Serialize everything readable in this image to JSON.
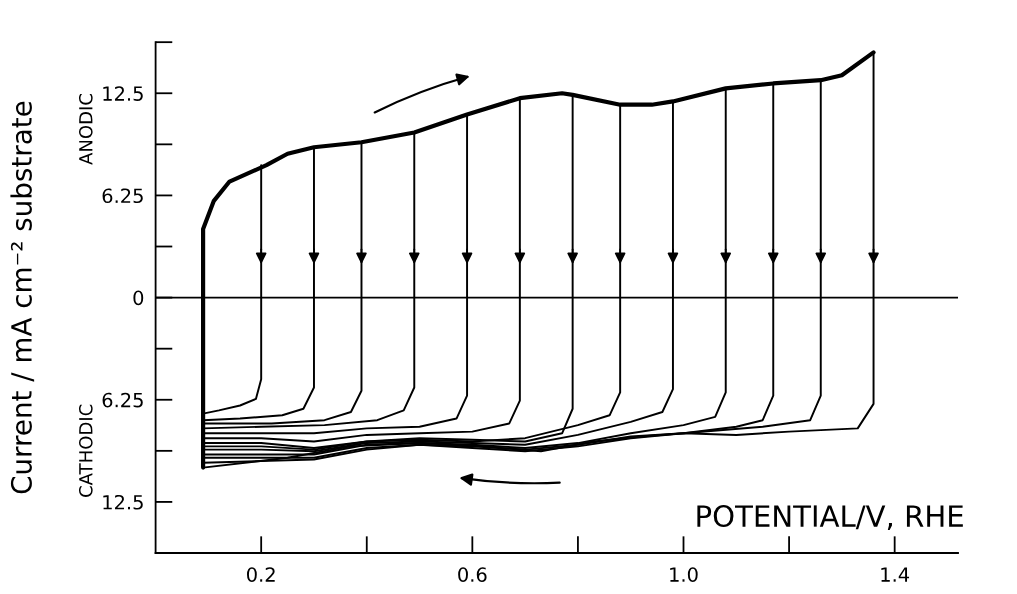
{
  "chart_data": {
    "type": "line",
    "xlabel": "POTENTIAL/V, RHE",
    "ylabel": "Current / mA cm⁻² substrate",
    "annotations": [
      "ANODIC",
      "CATHODIC"
    ],
    "xlim": [
      0,
      1.52
    ],
    "xticks": [
      0.2,
      0.6,
      {
        "value": 1.0,
        "label": "1.0"
      },
      1.4
    ],
    "ylim": [
      -15.625,
      15.625
    ],
    "yticks": [
      {
        "value": -12.5,
        "label": "12.5"
      },
      {
        "value": -6.25,
        "label": "6.25"
      },
      0,
      6.25,
      12.5
    ],
    "ref_lines": [
      {
        "axis": "y",
        "value": 0,
        "color": "#000000"
      }
    ],
    "grid": false,
    "legend": false,
    "marker": "none",
    "line_style": "solid",
    "series": [
      {
        "color": "#000000",
        "x": [
          0.09,
          0.09,
          0.09,
          0.11,
          0.14,
          0.21,
          0.25,
          0.3,
          0.39,
          0.49,
          0.59,
          0.69,
          0.77,
          0.79,
          0.88,
          0.94,
          0.98,
          1.08,
          1.17,
          1.26,
          1.3,
          1.36
        ],
        "values": [
          -10.4,
          2.0,
          4.2,
          5.9,
          7.1,
          8.1,
          8.8,
          9.2,
          9.5,
          10.1,
          11.2,
          12.2,
          12.5,
          12.4,
          11.8,
          11.8,
          12.0,
          12.8,
          13.1,
          13.3,
          13.6,
          15.0
        ]
      },
      {
        "color": "#000000",
        "x": [
          0.2,
          0.2,
          0.19,
          0.16,
          0.12,
          0.09
        ],
        "values": [
          8.1,
          -5.0,
          -6.2,
          -6.6,
          -6.9,
          -7.1
        ]
      },
      {
        "color": "#000000",
        "x": [
          0.3,
          0.3,
          0.28,
          0.24,
          0.16,
          0.09
        ],
        "values": [
          9.2,
          -5.5,
          -6.8,
          -7.2,
          -7.4,
          -7.5
        ]
      },
      {
        "color": "#000000",
        "x": [
          0.39,
          0.39,
          0.37,
          0.32,
          0.22,
          0.09
        ],
        "values": [
          9.5,
          -5.7,
          -7.0,
          -7.5,
          -7.7,
          -7.7
        ]
      },
      {
        "color": "#000000",
        "x": [
          0.49,
          0.49,
          0.47,
          0.42,
          0.32,
          0.2,
          0.09
        ],
        "values": [
          10.1,
          -5.5,
          -6.9,
          -7.5,
          -7.8,
          -7.9,
          -8.0
        ]
      },
      {
        "color": "#000000",
        "x": [
          0.59,
          0.59,
          0.57,
          0.5,
          0.4,
          0.3,
          0.2,
          0.09
        ],
        "values": [
          11.2,
          -6.0,
          -7.4,
          -7.9,
          -8.0,
          -8.3,
          -8.3,
          -8.3
        ]
      },
      {
        "color": "#000000",
        "x": [
          0.69,
          0.69,
          0.67,
          0.6,
          0.5,
          0.4,
          0.3,
          0.2,
          0.09
        ],
        "values": [
          12.2,
          -6.3,
          -7.7,
          -8.2,
          -8.3,
          -8.4,
          -8.8,
          -8.6,
          -8.6
        ]
      },
      {
        "color": "#000000",
        "x": [
          0.79,
          0.79,
          0.77,
          0.7,
          0.6,
          0.5,
          0.4,
          0.3,
          0.2,
          0.09
        ],
        "values": [
          12.4,
          -6.8,
          -8.3,
          -8.8,
          -8.7,
          -8.6,
          -8.8,
          -9.2,
          -8.9,
          -8.9
        ]
      },
      {
        "color": "#000000",
        "x": [
          0.88,
          0.88,
          0.86,
          0.8,
          0.7,
          0.6,
          0.5,
          0.4,
          0.3,
          0.2,
          0.09
        ],
        "values": [
          11.8,
          -5.8,
          -7.2,
          -7.8,
          -8.6,
          -8.8,
          -8.7,
          -8.8,
          -9.3,
          -9.1,
          -9.1
        ]
      },
      {
        "color": "#000000",
        "x": [
          0.98,
          0.98,
          0.96,
          0.9,
          0.8,
          0.7,
          0.6,
          0.5,
          0.4,
          0.3,
          0.2,
          0.09
        ],
        "values": [
          12.0,
          -5.6,
          -7.0,
          -7.6,
          -8.4,
          -9.0,
          -8.9,
          -8.8,
          -8.9,
          -9.4,
          -9.3,
          -9.3
        ]
      },
      {
        "color": "#000000",
        "x": [
          1.08,
          1.08,
          1.06,
          1.0,
          0.9,
          0.8,
          0.7,
          0.6,
          0.5,
          0.4,
          0.3,
          0.2,
          0.09
        ],
        "values": [
          12.8,
          -5.8,
          -7.3,
          -7.8,
          -8.3,
          -8.9,
          -9.2,
          -9.0,
          -8.9,
          -9.0,
          -9.6,
          -9.6,
          -9.6
        ]
      },
      {
        "color": "#000000",
        "x": [
          1.17,
          1.17,
          1.15,
          1.1,
          1.0,
          0.9,
          0.8,
          0.7,
          0.6,
          0.5,
          0.4,
          0.3,
          0.2,
          0.09
        ],
        "values": [
          13.1,
          -6.0,
          -7.5,
          -7.9,
          -8.3,
          -8.5,
          -9.0,
          -9.3,
          -9.1,
          -9.0,
          -9.2,
          -9.8,
          -9.8,
          -9.8
        ]
      },
      {
        "color": "#000000",
        "x": [
          1.26,
          1.26,
          1.24,
          1.15,
          1.0,
          0.9,
          0.8,
          0.7,
          0.6,
          0.5,
          0.4,
          0.3,
          0.2,
          0.09
        ],
        "values": [
          13.3,
          -6.0,
          -7.5,
          -7.9,
          -8.3,
          -8.6,
          -9.1,
          -9.4,
          -9.2,
          -9.0,
          -9.3,
          -9.9,
          -10.0,
          -10.1
        ]
      },
      {
        "color": "#000000",
        "x": [
          1.36,
          1.36,
          1.33,
          1.2,
          1.1,
          1.0,
          0.92,
          0.83,
          0.73,
          0.62,
          0.5,
          0.37,
          0.25,
          0.09
        ],
        "values": [
          15.0,
          -6.5,
          -8.0,
          -8.2,
          -8.4,
          -8.3,
          -8.5,
          -8.8,
          -9.4,
          -9.1,
          -8.9,
          -9.1,
          -9.8,
          -10.4
        ]
      }
    ]
  }
}
